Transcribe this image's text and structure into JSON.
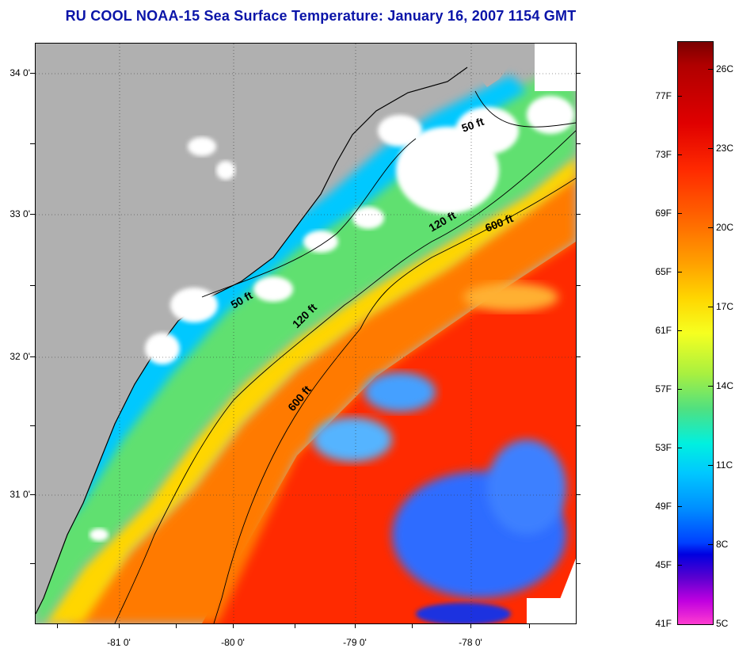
{
  "title": "RU COOL  NOAA-15  Sea Surface Temperature:  January 16, 2007 1154 GMT",
  "map": {
    "latitude_labels": [
      "34 0'",
      "33 0'",
      "32 0'",
      "31 0'"
    ],
    "longitude_labels": [
      "-81 0'",
      "-80 0'",
      "-79 0'",
      "-78 0'"
    ],
    "isobath_labels": [
      "50 ft",
      "120 ft",
      "600 ft",
      "50 ft",
      "120 ft",
      "600 ft"
    ],
    "colors": {
      "land": "#b0b0b0",
      "cloud": "#ffffff",
      "gulf_stream": "#ff2a00",
      "shelf_cold": "#00c8ff",
      "shelf_mid": "#50e080",
      "coast_line": "#000000"
    }
  },
  "colorbar": {
    "fahrenheit_labels": [
      "77F",
      "73F",
      "69F",
      "65F",
      "61F",
      "57F",
      "53F",
      "49F",
      "45F",
      "41F"
    ],
    "celsius_labels": [
      "26C",
      "23C",
      "20C",
      "17C",
      "14C",
      "11C",
      "8C",
      "5C"
    ]
  }
}
